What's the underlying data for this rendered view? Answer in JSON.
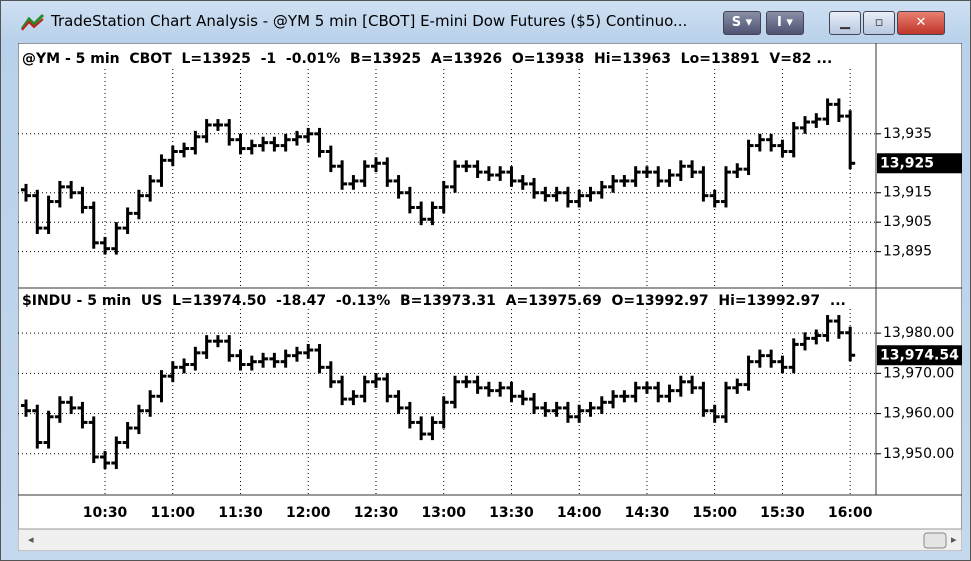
{
  "window": {
    "title": "TradeStation Chart Analysis - @YM 5 min [CBOT] E-mini Dow Futures ($5) Continuo...",
    "buttons": [
      "S",
      "I"
    ]
  },
  "chart_data": [
    {
      "type": "ohlc",
      "header": "@YM - 5 min  CBOT  L=13925  -1  -0.01%  B=13925  A=13926  O=13938  Hi=13963  Lo=13891  V=82 ...",
      "last_label": "13,925",
      "color": "#000000",
      "grid": true,
      "ylim": [
        13883,
        13957
      ],
      "yticks": [
        {
          "value": 13895,
          "label": "13,895"
        },
        {
          "value": 13905,
          "label": "13,905"
        },
        {
          "value": 13915,
          "label": "13,915"
        },
        {
          "value": 13935,
          "label": "13,935"
        }
      ],
      "open": [
        13916,
        13914,
        13903,
        13912,
        13917,
        13915,
        13910,
        13898,
        13896,
        13903,
        13908,
        13914,
        13919,
        13926,
        13929,
        13930,
        13934,
        13938,
        13938,
        13933,
        13930,
        13931,
        13932,
        13931,
        13933,
        13934,
        13935,
        13929,
        13924,
        13918,
        13919,
        13924,
        13925,
        13919,
        13915,
        13910,
        13906,
        13910,
        13917,
        13924,
        13924,
        13922,
        13921,
        13922,
        13919,
        13918,
        13915,
        13914,
        13915,
        13912,
        13914,
        13915,
        13917,
        13919,
        13919,
        13922,
        13922,
        13919,
        13921,
        13924,
        13922,
        13914,
        13912,
        13922,
        13923,
        13931,
        13933,
        13931,
        13929,
        13937,
        13939,
        13940,
        13945,
        13941
      ],
      "high": [
        13918,
        13916,
        13914,
        13919,
        13919,
        13917,
        13912,
        13900,
        13905,
        13910,
        13916,
        13921,
        13928,
        13931,
        13932,
        13936,
        13940,
        13940,
        13940,
        13935,
        13933,
        13934,
        13934,
        13935,
        13936,
        13937,
        13937,
        13931,
        13926,
        13921,
        13926,
        13927,
        13927,
        13921,
        13917,
        13912,
        13912,
        13919,
        13926,
        13926,
        13926,
        13924,
        13924,
        13924,
        13921,
        13920,
        13917,
        13917,
        13917,
        13916,
        13917,
        13919,
        13921,
        13921,
        13924,
        13924,
        13924,
        13923,
        13926,
        13926,
        13924,
        13916,
        13924,
        13925,
        13933,
        13935,
        13935,
        13933,
        13939,
        13941,
        13942,
        13947,
        13947,
        13943
      ],
      "low": [
        13912,
        13901,
        13901,
        13910,
        13913,
        13908,
        13896,
        13894,
        13894,
        13901,
        13906,
        13912,
        13917,
        13924,
        13927,
        13928,
        13932,
        13936,
        13931,
        13928,
        13928,
        13929,
        13929,
        13929,
        13931,
        13932,
        13927,
        13922,
        13916,
        13916,
        13917,
        13922,
        13917,
        13913,
        13908,
        13904,
        13904,
        13908,
        13915,
        13922,
        13920,
        13919,
        13919,
        13917,
        13916,
        13913,
        13912,
        13912,
        13910,
        13910,
        13912,
        13913,
        13915,
        13917,
        13917,
        13920,
        13917,
        13917,
        13919,
        13920,
        13912,
        13910,
        13910,
        13920,
        13921,
        13929,
        13929,
        13927,
        13927,
        13935,
        13937,
        13938,
        13939,
        13923
      ],
      "close": [
        13914,
        13903,
        13912,
        13917,
        13915,
        13910,
        13898,
        13896,
        13903,
        13908,
        13914,
        13919,
        13926,
        13929,
        13930,
        13934,
        13938,
        13938,
        13933,
        13930,
        13931,
        13932,
        13931,
        13933,
        13934,
        13935,
        13929,
        13924,
        13918,
        13919,
        13924,
        13925,
        13919,
        13915,
        13910,
        13906,
        13910,
        13917,
        13924,
        13924,
        13922,
        13921,
        13922,
        13919,
        13918,
        13915,
        13914,
        13915,
        13912,
        13914,
        13915,
        13917,
        13919,
        13919,
        13922,
        13922,
        13919,
        13921,
        13924,
        13922,
        13914,
        13912,
        13922,
        13923,
        13931,
        13933,
        13931,
        13929,
        13937,
        13939,
        13940,
        13945,
        13941,
        13925
      ]
    },
    {
      "type": "ohlc",
      "header": "$INDU - 5 min  US  L=13974.50  -18.47  -0.13%  B=13973.31  A=13975.69  O=13992.97  Hi=13992.97  ...",
      "last_label": "13,974.54",
      "color": "#000000",
      "grid": true,
      "ylim": [
        13940,
        13986
      ],
      "yticks": [
        {
          "value": 13950,
          "label": "13,950.00"
        },
        {
          "value": 13960,
          "label": "13,960.00"
        },
        {
          "value": 13970,
          "label": "13,970.00"
        },
        {
          "value": 13980,
          "label": "13,980.00"
        }
      ],
      "categories": [
        null,
        null,
        null,
        null,
        null,
        null,
        null,
        "10:30",
        null,
        null,
        null,
        null,
        null,
        "11:00",
        null,
        null,
        null,
        null,
        null,
        "11:30",
        null,
        null,
        null,
        null,
        null,
        "12:00",
        null,
        null,
        null,
        null,
        null,
        "12:30",
        null,
        null,
        null,
        null,
        null,
        "13:00",
        null,
        null,
        null,
        null,
        null,
        "13:30",
        null,
        null,
        null,
        null,
        null,
        "14:00",
        null,
        null,
        null,
        null,
        null,
        "14:30",
        null,
        null,
        null,
        null,
        null,
        "15:00",
        null,
        null,
        null,
        null,
        null,
        "15:30",
        null,
        null,
        null,
        null,
        null,
        "16:00"
      ],
      "open": [
        13962.0,
        13960.7,
        13952.8,
        13959.2,
        13962.8,
        13961.4,
        13957.8,
        13949.2,
        13947.7,
        13952.8,
        13956.4,
        13960.7,
        13964.3,
        13969.3,
        13971.5,
        13972.2,
        13975.1,
        13978.0,
        13978.0,
        13974.4,
        13972.2,
        13972.9,
        13973.6,
        13972.9,
        13974.4,
        13975.1,
        13975.8,
        13971.5,
        13967.9,
        13963.6,
        13964.3,
        13967.9,
        13968.6,
        13964.3,
        13961.4,
        13957.8,
        13954.9,
        13957.8,
        13962.8,
        13967.9,
        13967.9,
        13966.4,
        13965.7,
        13966.4,
        13964.3,
        13963.6,
        13961.4,
        13960.7,
        13961.4,
        13959.2,
        13960.7,
        13961.4,
        13962.8,
        13964.3,
        13964.3,
        13966.4,
        13966.4,
        13964.3,
        13965.7,
        13967.9,
        13966.4,
        13960.7,
        13959.2,
        13966.4,
        13967.2,
        13972.9,
        13974.4,
        13972.9,
        13971.5,
        13977.2,
        13978.7,
        13979.4,
        13983.0,
        13980.1
      ],
      "high": [
        13963.5,
        13962.2,
        13960.7,
        13964.3,
        13964.3,
        13962.9,
        13959.3,
        13950.7,
        13954.3,
        13957.9,
        13962.2,
        13965.8,
        13970.8,
        13973.0,
        13973.7,
        13976.6,
        13979.5,
        13979.5,
        13979.5,
        13975.9,
        13974.4,
        13975.1,
        13975.1,
        13975.9,
        13976.6,
        13977.3,
        13977.3,
        13973.0,
        13969.4,
        13965.8,
        13969.4,
        13970.1,
        13970.1,
        13965.8,
        13962.9,
        13959.3,
        13959.3,
        13964.3,
        13969.4,
        13969.4,
        13969.4,
        13967.9,
        13967.9,
        13967.9,
        13965.8,
        13965.1,
        13962.9,
        13962.9,
        13962.9,
        13962.2,
        13962.9,
        13964.3,
        13965.8,
        13965.8,
        13967.9,
        13967.9,
        13967.9,
        13967.2,
        13969.4,
        13969.4,
        13967.9,
        13962.2,
        13967.9,
        13968.7,
        13974.4,
        13975.9,
        13975.9,
        13974.4,
        13978.7,
        13980.2,
        13980.9,
        13984.5,
        13984.5,
        13981.6
      ],
      "low": [
        13959.2,
        13951.3,
        13951.3,
        13957.7,
        13959.9,
        13956.3,
        13947.7,
        13946.2,
        13946.2,
        13951.3,
        13954.9,
        13959.2,
        13962.8,
        13967.8,
        13970.0,
        13970.7,
        13973.6,
        13976.5,
        13972.9,
        13970.7,
        13970.7,
        13971.4,
        13971.4,
        13971.4,
        13972.9,
        13973.6,
        13970.0,
        13966.4,
        13962.1,
        13962.1,
        13962.8,
        13966.4,
        13962.8,
        13959.9,
        13956.3,
        13953.4,
        13953.4,
        13956.3,
        13961.3,
        13966.4,
        13964.9,
        13964.2,
        13964.2,
        13962.8,
        13962.1,
        13959.9,
        13959.2,
        13959.2,
        13957.7,
        13957.7,
        13959.2,
        13959.9,
        13961.3,
        13962.8,
        13962.8,
        13964.9,
        13962.8,
        13962.8,
        13964.2,
        13964.9,
        13959.2,
        13957.7,
        13957.7,
        13964.9,
        13965.7,
        13971.4,
        13971.4,
        13970.0,
        13970.0,
        13975.7,
        13977.2,
        13977.9,
        13978.6,
        13973.0
      ],
      "close": [
        13960.7,
        13952.8,
        13959.2,
        13962.8,
        13961.4,
        13957.8,
        13949.2,
        13947.7,
        13952.8,
        13956.4,
        13960.7,
        13964.3,
        13969.3,
        13971.5,
        13972.2,
        13975.1,
        13978.0,
        13978.0,
        13974.4,
        13972.2,
        13972.9,
        13973.6,
        13972.9,
        13974.4,
        13975.1,
        13975.8,
        13971.5,
        13967.9,
        13963.6,
        13964.3,
        13967.9,
        13968.6,
        13964.3,
        13961.4,
        13957.8,
        13954.9,
        13957.8,
        13962.8,
        13967.9,
        13967.9,
        13966.4,
        13965.7,
        13966.4,
        13964.3,
        13963.6,
        13961.4,
        13960.7,
        13961.4,
        13959.2,
        13960.7,
        13961.4,
        13962.8,
        13964.3,
        13964.3,
        13966.4,
        13966.4,
        13964.3,
        13965.7,
        13967.9,
        13966.4,
        13960.7,
        13959.2,
        13966.4,
        13967.2,
        13972.9,
        13974.4,
        13972.9,
        13971.5,
        13977.2,
        13978.7,
        13979.4,
        13983.0,
        13980.1,
        13974.5
      ]
    }
  ]
}
